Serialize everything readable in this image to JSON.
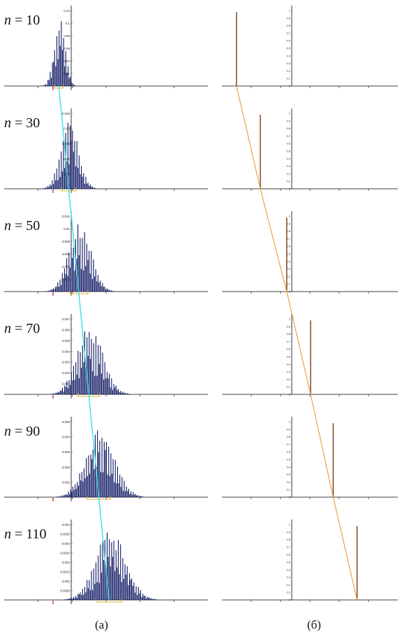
{
  "captions": {
    "left": "(а)",
    "right": "(б)"
  },
  "colors": {
    "bars": "#0c1560",
    "spike": "#7a3a0c",
    "track_left": "#38e0e8",
    "track_right": "#f0a040",
    "bracket": "#e0b030",
    "marker": "#c0103a",
    "axis": "#000000"
  },
  "chart_data": [
    {
      "type": "bar",
      "n_label": "n = 10",
      "n": 10,
      "ymax": 0.12,
      "ticks": [
        "0.12",
        "0.1",
        "0.08",
        "0.06",
        "0.04",
        "0.02"
      ],
      "center": 0.27,
      "spread": 0.058,
      "right_spike_x": -2.2
    },
    {
      "type": "bar",
      "n_label": "n = 30",
      "n": 30,
      "ymax": 0.025,
      "ticks": [
        "0.025",
        "0.02",
        "0.015",
        "0.01",
        "0.005"
      ],
      "center": 0.32,
      "spread": 0.095,
      "right_spike_x": -1.25
    },
    {
      "type": "bar",
      "n_label": "n = 50",
      "n": 50,
      "ymax": 0.012,
      "ticks": [
        "0.012",
        "0.01",
        "0.008",
        "0.006",
        "0.004",
        "0.002"
      ],
      "center": 0.37,
      "spread": 0.12,
      "right_spike_x": -0.2
    },
    {
      "type": "bar",
      "n_label": "n = 70",
      "n": 70,
      "ymax": 0.007,
      "ticks": [
        "0.007",
        "0.006",
        "0.005",
        "0.004",
        "0.003",
        "0.002",
        "0.001"
      ],
      "center": 0.42,
      "spread": 0.14,
      "right_spike_x": 0.75
    },
    {
      "type": "bar",
      "n_label": "n = 90",
      "n": 90,
      "ymax": 0.005,
      "ticks": [
        "0.005",
        "0.004",
        "0.003",
        "0.002",
        "0.001"
      ],
      "center": 0.47,
      "spread": 0.155,
      "right_spike_x": 1.65
    },
    {
      "type": "bar",
      "n_label": "n = 110",
      "n": 110,
      "ymax": 0.004,
      "ticks": [
        "0.004",
        "0.0035",
        "0.003",
        "0.0025",
        "0.002",
        "0.0015",
        "0.001",
        "0.0005"
      ],
      "center": 0.52,
      "spread": 0.165,
      "right_spike_x": 2.6
    }
  ],
  "right_ticks": [
    "1",
    "0.9",
    "0.8",
    "0.7",
    "0.6",
    "0.5",
    "0.4",
    "0.3",
    "0.2",
    "0.1",
    "0"
  ]
}
